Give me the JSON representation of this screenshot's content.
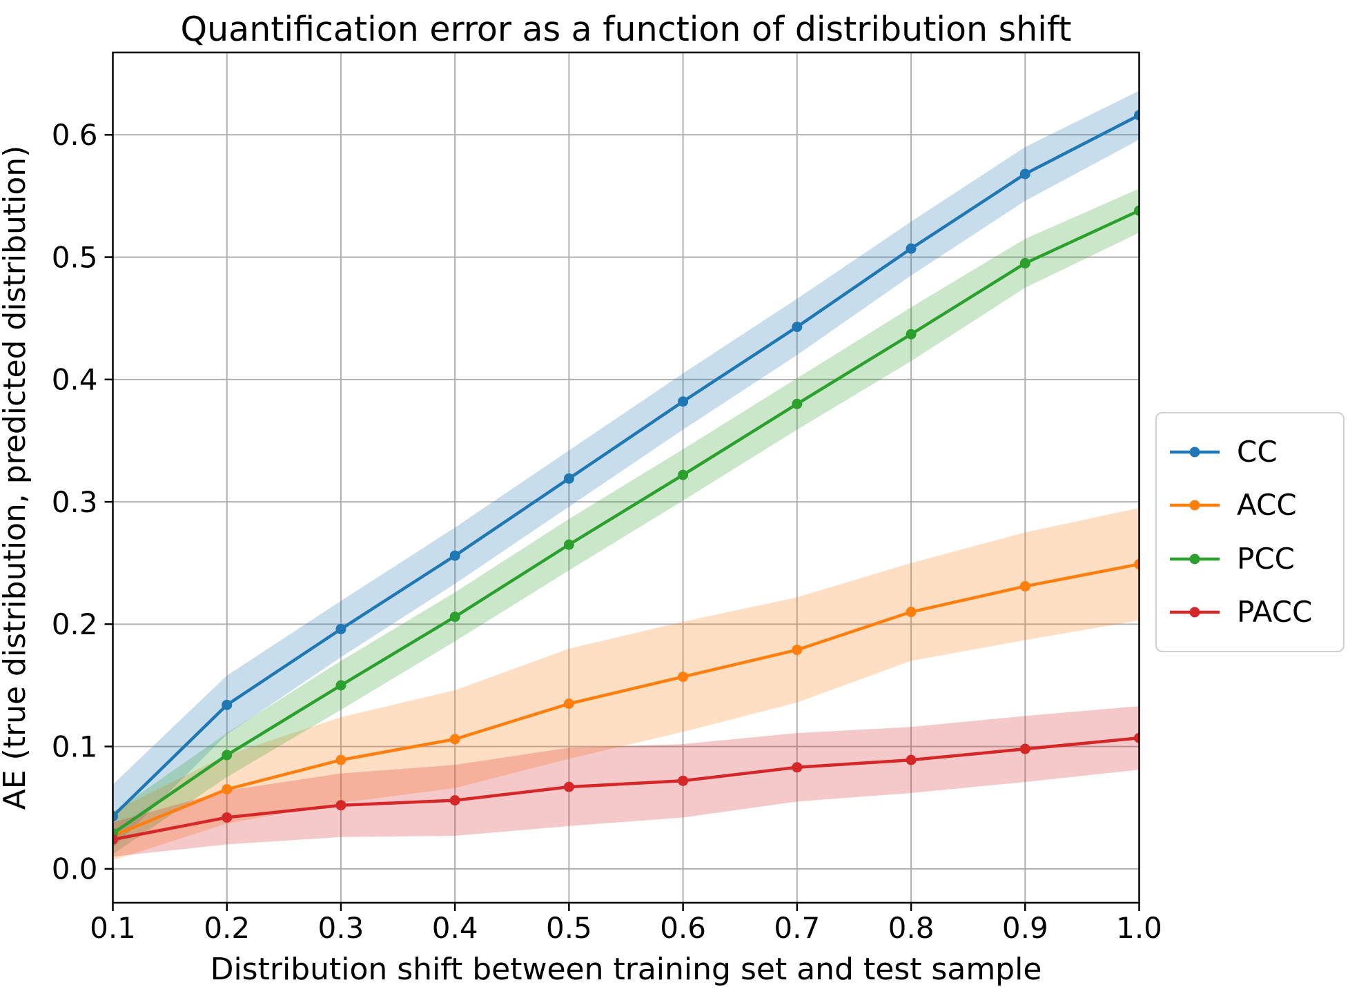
{
  "figure": {
    "background": "#ffffff"
  },
  "chart_data": {
    "type": "line",
    "title": "Quantification error as a function of distribution shift",
    "xlabel": "Distribution shift between training set and test sample",
    "ylabel": "AE (true distribution, predicted distribution)",
    "x": [
      0.1,
      0.2,
      0.3,
      0.4,
      0.5,
      0.6,
      0.7,
      0.8,
      0.9,
      1.0
    ],
    "xtick_values": [
      0.1,
      0.2,
      0.3,
      0.4,
      0.5,
      0.6,
      0.7,
      0.8,
      0.9,
      1.0
    ],
    "xtick_labels": [
      "0.1",
      "0.2",
      "0.3",
      "0.4",
      "0.5",
      "0.6",
      "0.7",
      "0.8",
      "0.9",
      "1.0"
    ],
    "ytick_values": [
      0.0,
      0.1,
      0.2,
      0.3,
      0.4,
      0.5,
      0.6
    ],
    "ytick_labels": [
      "0.0",
      "0.1",
      "0.2",
      "0.3",
      "0.4",
      "0.5",
      "0.6"
    ],
    "xlim": [
      0.1,
      1.0
    ],
    "ylim": [
      -0.0277,
      0.6673
    ],
    "grid": true,
    "grid_color": "#b0b0b0",
    "legend": {
      "position": "outside-right",
      "entries": [
        "CC",
        "ACC",
        "PCC",
        "PACC"
      ]
    },
    "series": [
      {
        "name": "CC",
        "color": "#1f77b4",
        "values": [
          0.043,
          0.134,
          0.196,
          0.256,
          0.319,
          0.382,
          0.443,
          0.507,
          0.568,
          0.616
        ],
        "band_halfwidth": [
          0.026,
          0.024,
          0.023,
          0.023,
          0.023,
          0.023,
          0.023,
          0.022,
          0.022,
          0.02
        ]
      },
      {
        "name": "ACC",
        "color": "#ff7f0e",
        "values": [
          0.027,
          0.065,
          0.089,
          0.106,
          0.135,
          0.157,
          0.179,
          0.21,
          0.231,
          0.249
        ],
        "band_halfwidth": [
          0.02,
          0.028,
          0.035,
          0.04,
          0.045,
          0.045,
          0.043,
          0.04,
          0.044,
          0.046
        ]
      },
      {
        "name": "PCC",
        "color": "#2ca02c",
        "values": [
          0.029,
          0.093,
          0.15,
          0.206,
          0.265,
          0.322,
          0.38,
          0.437,
          0.495,
          0.538
        ],
        "band_halfwidth": [
          0.017,
          0.018,
          0.02,
          0.02,
          0.021,
          0.021,
          0.021,
          0.022,
          0.02,
          0.018
        ]
      },
      {
        "name": "PACC",
        "color": "#d62728",
        "values": [
          0.024,
          0.042,
          0.052,
          0.056,
          0.067,
          0.072,
          0.083,
          0.089,
          0.098,
          0.107
        ],
        "band_halfwidth": [
          0.014,
          0.022,
          0.026,
          0.029,
          0.032,
          0.03,
          0.028,
          0.027,
          0.027,
          0.026
        ]
      }
    ]
  }
}
